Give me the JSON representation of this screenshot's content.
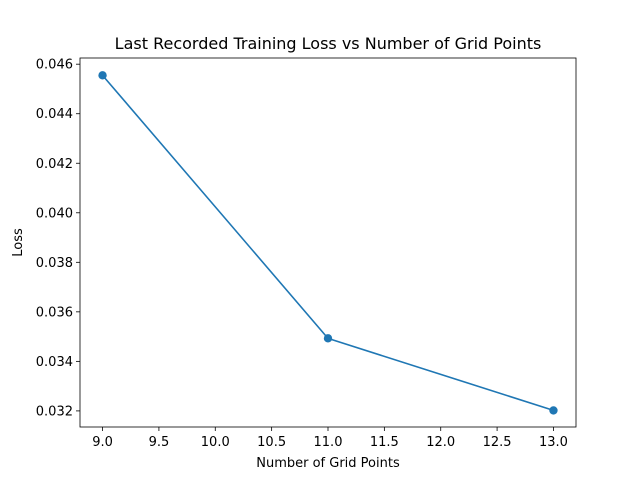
{
  "chart_data": {
    "type": "line",
    "title": "Last Recorded Training Loss vs Number of Grid Points",
    "xlabel": "Number of Grid Points",
    "ylabel": "Loss",
    "xlim": [
      8.8,
      13.2
    ],
    "ylim": [
      0.03135,
      0.04625
    ],
    "xticks": [
      "9.0",
      "9.5",
      "10.0",
      "10.5",
      "11.0",
      "11.5",
      "12.0",
      "12.5",
      "13.0"
    ],
    "yticks": [
      "0.032",
      "0.034",
      "0.036",
      "0.038",
      "0.040",
      "0.042",
      "0.044",
      "0.046"
    ],
    "grid": false,
    "series": [
      {
        "x": [
          9,
          11,
          13
        ],
        "y": [
          0.04555,
          0.03493,
          0.03202
        ],
        "color": "#1f77b4",
        "marker": "circle"
      }
    ]
  }
}
